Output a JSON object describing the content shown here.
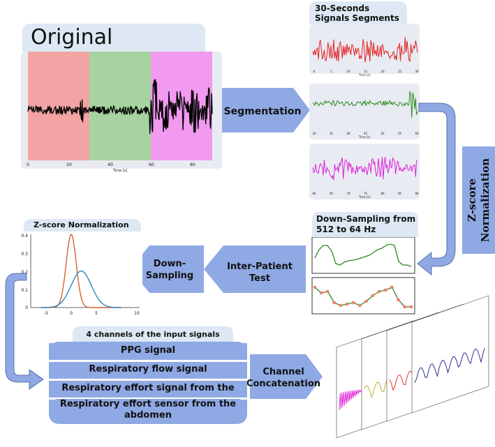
{
  "original": {
    "title": "Original",
    "x_ticks": [
      "0",
      "20",
      "40",
      "60",
      "80"
    ],
    "x_label": "Time [s]"
  },
  "segments": {
    "title_line1": "30-Seconds",
    "title_line2": "Signals Segments",
    "panels": [
      {
        "ticks": [
          "0",
          "5",
          "10",
          "15",
          "20",
          "25",
          "30"
        ],
        "x_label": "Time [s]",
        "color": "#e02020"
      },
      {
        "ticks": [
          "30",
          "35",
          "40",
          "45",
          "50",
          "55",
          "60"
        ],
        "x_label": "Time [s]",
        "color": "#2a8a1e"
      },
      {
        "ticks": [
          "60",
          "65",
          "70",
          "75",
          "80",
          "85",
          "90"
        ],
        "x_label": "Time [s]",
        "color": "#e020d8"
      }
    ]
  },
  "arrows": {
    "segmentation": "Segmentation",
    "zscore_line1": "Z-score",
    "zscore_line2": "Normalization",
    "inter_patient_line1": "Inter-Patient",
    "inter_patient_line2": "Test",
    "down_sampling_line1": "Down-",
    "down_sampling_line2": "Sampling",
    "channel_line1": "Channel",
    "channel_line2": "Concatenation"
  },
  "downsampling": {
    "title_line1": "Down-Sampling from",
    "title_line2": "512 to 64 Hz"
  },
  "zscore_plot": {
    "title": "Z-score Normalization",
    "y_ticks": [
      "0.4",
      "0.3",
      "0.2",
      "0.1",
      "0"
    ],
    "x_ticks": [
      "-5",
      "0",
      "5",
      "10"
    ]
  },
  "channels": {
    "title": "4 channels of the input signals",
    "items": [
      "PPG signal",
      "Respiratory flow signal",
      "Respiratory effort signal from the chest",
      "Respiratory effort sensor from the abdomen"
    ]
  },
  "colors": {
    "arrow_blue": "#8fa9e4",
    "red_band": "#f2a3a3",
    "green_band": "#a6d3a0",
    "magenta_band": "#f19af0",
    "gauss_orange": "#d4622a",
    "gauss_blue": "#2f86c3"
  }
}
